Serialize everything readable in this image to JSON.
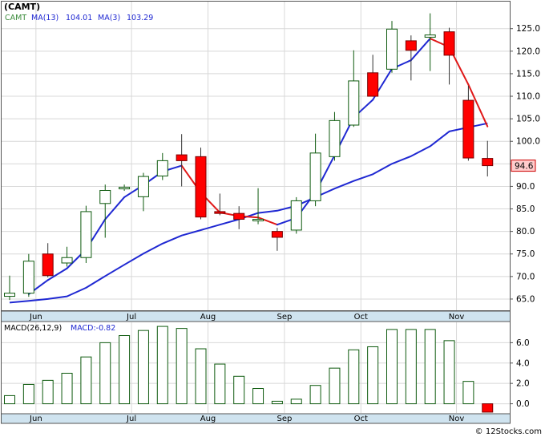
{
  "chart_data": [
    {
      "type": "candlestick",
      "title": "(CAMT)",
      "legend": {
        "symbol": "CAMT",
        "ma13_label": "MA(13)",
        "ma13_value": "104.01",
        "ma3_label": "MA(3)",
        "ma3_value": "103.29"
      },
      "ylim": [
        62.5,
        131
      ],
      "y_ticks": [
        "65.0",
        "70.0",
        "75.0",
        "80.0",
        "85.0",
        "90.0",
        "95.0",
        "100.0",
        "105.0",
        "110.0",
        "115.0",
        "120.0",
        "125.0"
      ],
      "y_tick_values": [
        65,
        70,
        75,
        80,
        85,
        90,
        95,
        100,
        105,
        110,
        115,
        120,
        125
      ],
      "x_labels": [
        {
          "label": "Jun",
          "index": 1
        },
        {
          "label": "Jul",
          "index": 6
        },
        {
          "label": "Aug",
          "index": 10
        },
        {
          "label": "Sep",
          "index": 14
        },
        {
          "label": "Oct",
          "index": 18
        },
        {
          "label": "Nov",
          "index": 23
        }
      ],
      "price_label": "94.6",
      "price_value": 94.6,
      "candles": [
        {
          "o": 65.6,
          "h": 70.2,
          "l": 64.8,
          "c": 66.3
        },
        {
          "o": 66.3,
          "h": 75.0,
          "l": 65.5,
          "c": 73.4
        },
        {
          "o": 75.0,
          "h": 77.4,
          "l": 69.8,
          "c": 70.2
        },
        {
          "o": 73.0,
          "h": 76.6,
          "l": 72.2,
          "c": 74.2
        },
        {
          "o": 74.2,
          "h": 85.7,
          "l": 73.0,
          "c": 84.4
        },
        {
          "o": 86.2,
          "h": 90.4,
          "l": 78.6,
          "c": 89.1
        },
        {
          "o": 89.5,
          "h": 90.4,
          "l": 89.0,
          "c": 89.8
        },
        {
          "o": 87.7,
          "h": 93.0,
          "l": 84.5,
          "c": 92.2
        },
        {
          "o": 92.3,
          "h": 97.4,
          "l": 91.4,
          "c": 95.7
        },
        {
          "o": 97.0,
          "h": 101.6,
          "l": 90.0,
          "c": 95.7
        },
        {
          "o": 96.6,
          "h": 98.6,
          "l": 82.7,
          "c": 83.2
        },
        {
          "o": 84.4,
          "h": 88.4,
          "l": 83.6,
          "c": 84.0
        },
        {
          "o": 84.0,
          "h": 85.6,
          "l": 80.5,
          "c": 82.7
        },
        {
          "o": 82.4,
          "h": 89.6,
          "l": 81.6,
          "c": 82.7
        },
        {
          "o": 80.0,
          "h": 80.8,
          "l": 75.7,
          "c": 78.7
        },
        {
          "o": 80.3,
          "h": 87.6,
          "l": 79.5,
          "c": 86.8
        },
        {
          "o": 86.8,
          "h": 101.7,
          "l": 85.6,
          "c": 97.4
        },
        {
          "o": 96.6,
          "h": 106.5,
          "l": 95.7,
          "c": 104.6
        },
        {
          "o": 103.6,
          "h": 120.2,
          "l": 103.2,
          "c": 113.4
        },
        {
          "o": 115.2,
          "h": 119.2,
          "l": 109.9,
          "c": 110.0
        },
        {
          "o": 116.0,
          "h": 126.7,
          "l": 115.2,
          "c": 124.9
        },
        {
          "o": 122.3,
          "h": 123.5,
          "l": 113.5,
          "c": 120.2
        },
        {
          "o": 123.1,
          "h": 128.4,
          "l": 115.6,
          "c": 123.6
        },
        {
          "o": 124.3,
          "h": 125.2,
          "l": 112.6,
          "c": 119.1
        },
        {
          "o": 109.1,
          "h": 112.3,
          "l": 95.7,
          "c": 96.3
        },
        {
          "o": 96.2,
          "h": 100.1,
          "l": 92.2,
          "c": 94.6
        }
      ],
      "ma13": [
        64.2,
        64.6,
        65.0,
        65.6,
        67.5,
        70.1,
        72.6,
        75.1,
        77.3,
        79.1,
        80.3,
        81.5,
        82.7,
        84.1,
        84.6,
        85.7,
        87.6,
        89.5,
        91.2,
        92.7,
        95.0,
        96.7,
        98.9,
        102.2,
        103.1,
        104.0
      ],
      "ma3": [
        null,
        66.1,
        69.2,
        71.8,
        76.0,
        82.7,
        87.6,
        90.3,
        93.3,
        94.6,
        88.6,
        84.2,
        83.4,
        83.1,
        81.5,
        83.0,
        88.7,
        96.9,
        105.3,
        109.2,
        116.1,
        118.0,
        122.8,
        120.9,
        112.6,
        103.3
      ]
    },
    {
      "type": "bar",
      "title": "MACD(26,12,9)",
      "legend_label": "MACD:-0.82",
      "ylim": [
        -0.9,
        8.0
      ],
      "y_ticks": [
        "0.0",
        "2.0",
        "4.0",
        "6.0"
      ],
      "y_tick_values": [
        0,
        2,
        4,
        6
      ],
      "x_labels": [
        {
          "label": "Jun",
          "index": 1
        },
        {
          "label": "Jul",
          "index": 6
        },
        {
          "label": "Aug",
          "index": 10
        },
        {
          "label": "Sep",
          "index": 14
        },
        {
          "label": "Oct",
          "index": 18
        },
        {
          "label": "Nov",
          "index": 23
        }
      ],
      "values": [
        0.8,
        1.9,
        2.3,
        3.0,
        4.6,
        6.0,
        6.7,
        7.2,
        7.6,
        7.4,
        5.4,
        3.9,
        2.7,
        1.5,
        0.25,
        0.45,
        1.8,
        3.5,
        5.3,
        5.6,
        7.3,
        7.3,
        7.3,
        6.2,
        2.2,
        -0.82
      ]
    }
  ],
  "footer": "© 12Stocks.com",
  "colors": {
    "up": "#0e5a0e",
    "down": "#ff0000",
    "ma13": "#1f28d2",
    "ma3": "#e01818",
    "axis_band": "#cfe3ef",
    "price_box_fill": "#ffcccc"
  }
}
